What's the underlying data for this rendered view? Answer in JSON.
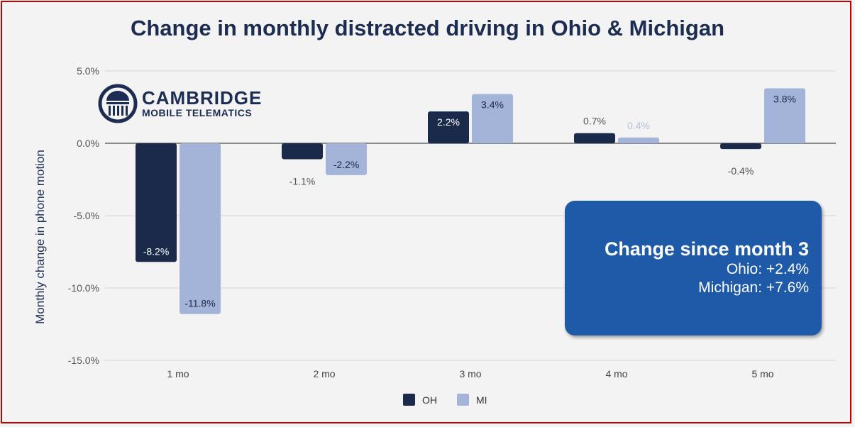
{
  "chart_data": {
    "type": "bar",
    "title": "Change in monthly distracted driving in Ohio & Michigan",
    "xlabel": "",
    "ylabel": "Monthly change in phone motion",
    "ylim": [
      -15,
      5
    ],
    "yticks": [
      "5.0%",
      "0.0%",
      "-5.0%",
      "-10.0%",
      "-15.0%"
    ],
    "ytick_values": [
      5,
      0,
      -5,
      -10,
      -15
    ],
    "grid": true,
    "legend_position": "bottom",
    "categories": [
      "1 mo",
      "2 mo",
      "3 mo",
      "4 mo",
      "5 mo"
    ],
    "series": [
      {
        "name": "OH",
        "color": "#1b2a4a",
        "values": [
          -8.2,
          -1.1,
          2.2,
          0.7,
          -0.4
        ],
        "labels": [
          "-8.2%",
          "-1.1%",
          "2.2%",
          "0.7%",
          "-0.4%"
        ]
      },
      {
        "name": "MI",
        "color": "#a3b4d8",
        "values": [
          -11.8,
          -2.2,
          3.4,
          0.4,
          3.8
        ],
        "labels": [
          "-11.8%",
          "-2.2%",
          "3.4%",
          "0.4%",
          "3.8%"
        ]
      }
    ]
  },
  "logo": {
    "line1": "CAMBRIDGE",
    "line2": "MOBILE TELEMATICS"
  },
  "callout": {
    "heading": "Change since month 3",
    "ohio": "Ohio: +2.4%",
    "michigan": "Michigan: +7.6%"
  },
  "legend": [
    {
      "label": "OH",
      "color": "#1b2a4a"
    },
    {
      "label": "MI",
      "color": "#a3b4d8"
    }
  ]
}
